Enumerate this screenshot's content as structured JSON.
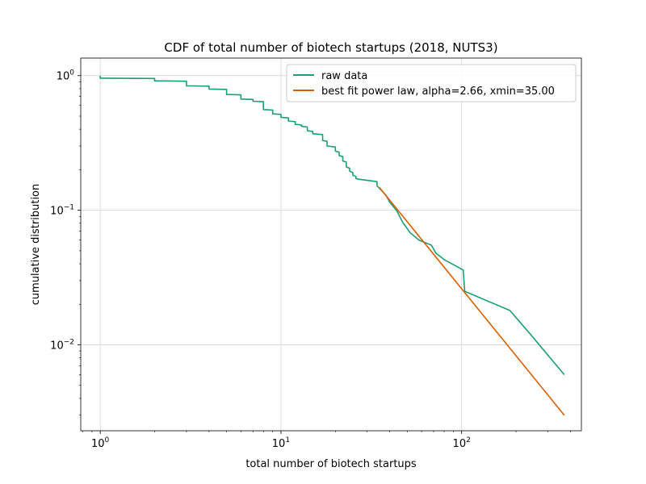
{
  "chart_data": {
    "type": "line",
    "title": "CDF of total number of biotech startups (2018, NUTS3)",
    "xlabel": "total number of biotech startups",
    "ylabel": "cumulative distribution",
    "xscale": "log",
    "yscale": "log",
    "xlim": [
      0.78,
      460
    ],
    "ylim": [
      0.0023,
      1.35
    ],
    "grid": true,
    "legend_position": "top-right",
    "x_ticks": [
      {
        "value": 1,
        "base": "10",
        "exp": "0"
      },
      {
        "value": 10,
        "base": "10",
        "exp": "1"
      },
      {
        "value": 100,
        "base": "10",
        "exp": "2"
      }
    ],
    "y_ticks": [
      {
        "value": 0.01,
        "base": "10",
        "exp": "−2"
      },
      {
        "value": 0.1,
        "base": "10",
        "exp": "−1"
      },
      {
        "value": 1,
        "base": "10",
        "exp": "0"
      }
    ],
    "series": [
      {
        "name": "raw data",
        "color": "#1b9e77",
        "x": [
          1,
          1,
          2,
          2,
          3,
          3,
          4,
          4,
          5,
          5,
          6,
          6,
          7,
          7,
          8,
          8,
          9,
          9,
          10,
          10,
          11,
          11,
          12,
          12,
          13,
          13,
          14,
          14,
          15,
          15,
          17,
          17,
          18,
          18,
          20,
          20,
          21,
          21,
          22,
          22,
          23,
          23,
          24,
          24,
          25,
          25,
          26,
          26,
          27,
          27,
          34,
          34,
          38,
          40,
          44,
          47,
          52,
          58,
          68,
          72,
          80,
          102,
          104,
          185,
          240,
          370
        ],
        "y": [
          1.0,
          0.958,
          0.952,
          0.915,
          0.909,
          0.84,
          0.835,
          0.795,
          0.79,
          0.725,
          0.72,
          0.67,
          0.665,
          0.645,
          0.64,
          0.56,
          0.555,
          0.52,
          0.515,
          0.49,
          0.485,
          0.46,
          0.455,
          0.435,
          0.43,
          0.42,
          0.415,
          0.39,
          0.385,
          0.37,
          0.365,
          0.33,
          0.325,
          0.3,
          0.295,
          0.275,
          0.27,
          0.255,
          0.25,
          0.232,
          0.228,
          0.21,
          0.205,
          0.195,
          0.19,
          0.182,
          0.178,
          0.172,
          0.17,
          0.17,
          0.163,
          0.152,
          0.13,
          0.115,
          0.098,
          0.082,
          0.068,
          0.06,
          0.055,
          0.048,
          0.043,
          0.036,
          0.025,
          0.018,
          0.012,
          0.006
        ]
      },
      {
        "name": "best fit power law, alpha=2.66, xmin=35.00",
        "color": "#d95f02",
        "x": [
          35,
          370
        ],
        "y": [
          0.148,
          0.003
        ]
      }
    ]
  }
}
